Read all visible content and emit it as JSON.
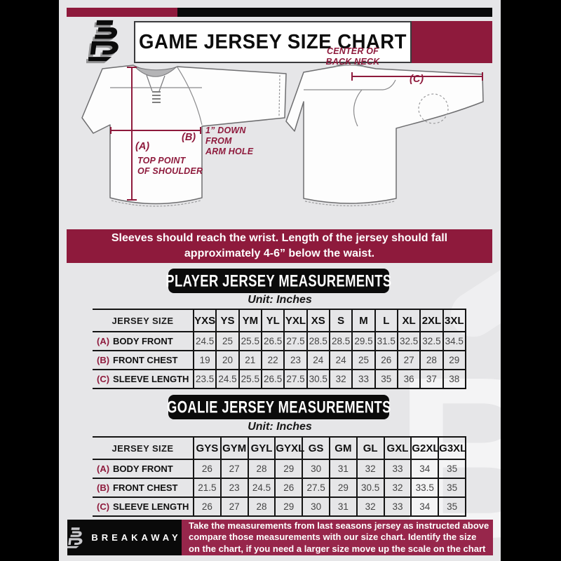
{
  "header": {
    "title": "GAME JERSEY SIZE CHART",
    "logo": "breakaway-b-logo"
  },
  "diagram": {
    "front": {
      "a_label": "(A)",
      "a_note_lines": [
        "TOP POINT",
        "OF SHOULDER"
      ],
      "b_label": "(B)",
      "b_note_lines": [
        "1” DOWN",
        "FROM",
        "ARM HOLE"
      ]
    },
    "back": {
      "c_label": "(C)",
      "c_note_lines": [
        "CENTER OF",
        "BACK NECK"
      ]
    }
  },
  "banner": {
    "lines": [
      "Sleeves should reach the wrist. Length of the jersey should fall",
      "approximately 4-6” below the waist."
    ]
  },
  "player_section": {
    "title": "PLAYER JERSEY MEASUREMENTS",
    "unit": "Unit: Inches",
    "table": {
      "corner_label": "JERSEY SIZE",
      "sizes": [
        "YXS",
        "YS",
        "YM",
        "YL",
        "YXL",
        "XS",
        "S",
        "M",
        "L",
        "XL",
        "2XL",
        "3XL"
      ],
      "rows": [
        {
          "key": "(A)",
          "label": "BODY FRONT",
          "values": [
            "24.5",
            "25",
            "25.5",
            "26.5",
            "27.5",
            "28.5",
            "28.5",
            "29.5",
            "31.5",
            "32.5",
            "32.5",
            "34.5"
          ]
        },
        {
          "key": "(B)",
          "label": "FRONT CHEST",
          "values": [
            "19",
            "20",
            "21",
            "22",
            "23",
            "24",
            "24",
            "25",
            "26",
            "27",
            "28",
            "29"
          ]
        },
        {
          "key": "(C)",
          "label": "SLEEVE LENGTH",
          "values": [
            "23.5",
            "24.5",
            "25.5",
            "26.5",
            "27.5",
            "30.5",
            "32",
            "33",
            "35",
            "36",
            "37",
            "38"
          ]
        }
      ]
    }
  },
  "goalie_section": {
    "title": "GOALIE JERSEY MEASUREMENTS",
    "unit": "Unit: Inches",
    "table": {
      "corner_label": "JERSEY SIZE",
      "sizes": [
        "GYS",
        "GYM",
        "GYL",
        "GYXL",
        "GS",
        "GM",
        "GL",
        "GXL",
        "G2XL",
        "G3XL"
      ],
      "rows": [
        {
          "key": "(A)",
          "label": "BODY FRONT",
          "values": [
            "26",
            "27",
            "28",
            "29",
            "30",
            "31",
            "32",
            "33",
            "34",
            "35"
          ]
        },
        {
          "key": "(B)",
          "label": "FRONT CHEST",
          "values": [
            "21.5",
            "23",
            "24.5",
            "26",
            "27.5",
            "29",
            "30.5",
            "32",
            "33.5",
            "35"
          ]
        },
        {
          "key": "(C)",
          "label": "SLEEVE LENGTH",
          "values": [
            "26",
            "27",
            "28",
            "29",
            "30",
            "31",
            "32",
            "33",
            "34",
            "35"
          ]
        }
      ]
    }
  },
  "footer": {
    "brand": "BREAKAWAY",
    "lines": [
      "Take the measurements from last seasons jersey as instructed above",
      "compare those measurements  with our size chart. Identify the size",
      "on the chart, if you need a larger size move up the scale on the chart"
    ]
  },
  "colors": {
    "maroon": "#8E1A3C",
    "footer_maroon": "#97264B",
    "black": "#0A0A0A",
    "background_gray": "#E6E6E8",
    "watermark_white": "#FFFFFF"
  }
}
